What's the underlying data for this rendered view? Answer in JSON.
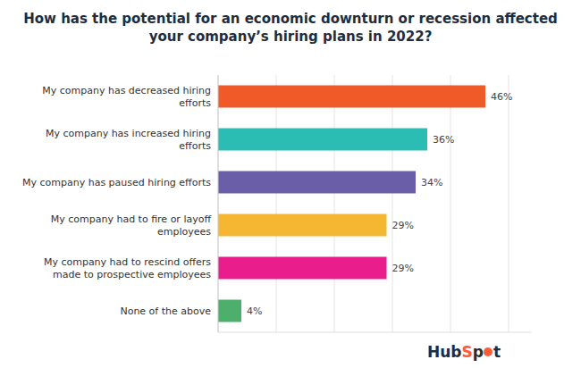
{
  "chart_data": {
    "type": "bar",
    "orientation": "horizontal",
    "title": "How has the potential for an economic downturn or recession affected\nyour company’s hiring plans in 2022?",
    "categories": [
      "My company has decreased hiring\nefforts",
      "My company has increased hiring\nefforts",
      "My company has paused hiring efforts",
      "My company had to fire or layoff\nemployees",
      "My company had to rescind offers\nmade to prospective employees",
      "None of the above"
    ],
    "values": [
      46,
      36,
      34,
      29,
      29,
      4
    ],
    "value_labels": [
      "46%",
      "36%",
      "34%",
      "29%",
      "29%",
      "4%"
    ],
    "colors": [
      "#F05A28",
      "#2BBDB4",
      "#6B5EA8",
      "#F5B731",
      "#E91E8C",
      "#4CAF6B"
    ],
    "xlim": [
      0,
      54
    ],
    "xticks": [
      0,
      10,
      20,
      30,
      40,
      50
    ],
    "grid": true,
    "data_labels": true,
    "tick_labels": "y",
    "annotations": [
      {
        "text": "Hub",
        "color": "#1F2D3D"
      },
      {
        "text": "S",
        "color": "#FF5C35"
      },
      {
        "text": "p",
        "color": "#1F2D3D"
      },
      {
        "text": "t",
        "color": "#1F2D3D"
      }
    ]
  }
}
